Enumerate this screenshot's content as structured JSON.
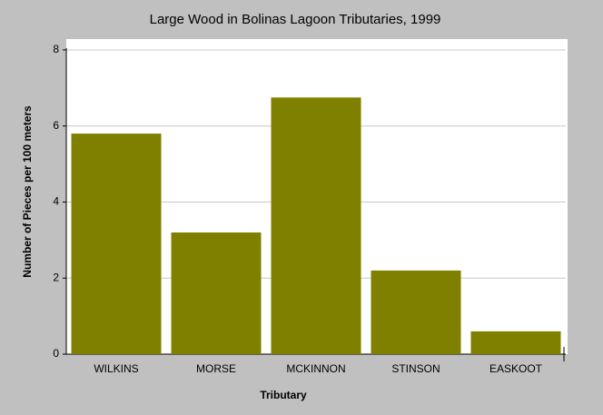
{
  "chart_data": {
    "type": "bar",
    "title": "Large Wood in Bolinas Lagoon Tributaries, 1999",
    "x_label": "Tributary",
    "y_label": "Number of Pieces per 100 meters",
    "categories": [
      "WILKINS",
      "MORSE",
      "MCKINNON",
      "STINSON",
      "EASKOOT"
    ],
    "values": [
      5.8,
      3.2,
      6.75,
      2.2,
      0.6
    ],
    "color": "#808000",
    "ylim": [
      0,
      8
    ],
    "yticks": [
      0,
      2,
      4,
      6,
      8
    ],
    "grid": true
  }
}
